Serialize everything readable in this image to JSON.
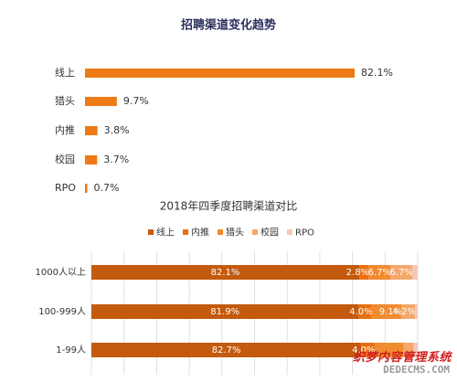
{
  "colors": {
    "bar_top": "#ee7a15",
    "stack": [
      "#c35a0d",
      "#e96f12",
      "#f08b2f",
      "#f4a86b",
      "#f7c7b8"
    ],
    "grid": "#d9d9d9",
    "text": "#333333",
    "title_top": "#2b2e5e"
  },
  "chart_data": [
    {
      "type": "bar",
      "orientation": "horizontal",
      "title": "招聘渠道变化趋势",
      "categories": [
        "线上",
        "猎头",
        "内推",
        "校园",
        "RPO"
      ],
      "values": [
        82.1,
        9.7,
        3.8,
        3.7,
        0.7
      ],
      "value_labels": [
        "82.1%",
        "9.7%",
        "3.8%",
        "3.7%",
        "0.7%"
      ],
      "xlim": [
        0,
        82.1
      ]
    },
    {
      "type": "bar",
      "orientation": "horizontal",
      "stacked": true,
      "title": "2018年四季度招聘渠道对比",
      "categories": [
        "1000人以上",
        "100-999人",
        "1-99人"
      ],
      "series": [
        {
          "name": "线上",
          "values": [
            82.1,
            81.9,
            82.7
          ],
          "labels": [
            "82.1%",
            "81.9%",
            "82.7%"
          ]
        },
        {
          "name": "内推",
          "values": [
            2.8,
            4.0,
            4.0
          ],
          "labels": [
            "2.8%",
            "4.0%",
            "4.0%"
          ]
        },
        {
          "name": "猎头",
          "values": [
            6.7,
            9.1,
            9.0
          ],
          "labels": [
            "6.7%",
            "9.1%",
            ""
          ]
        },
        {
          "name": "校园",
          "values": [
            6.7,
            4.2,
            3.0
          ],
          "labels": [
            "6.7%",
            "4.2%",
            ""
          ]
        },
        {
          "name": "RPO",
          "values": [
            1.7,
            0.8,
            1.3
          ],
          "labels": [
            "",
            "",
            ""
          ]
        }
      ],
      "legend": "top",
      "grid": true,
      "xlim": [
        0,
        100
      ]
    }
  ],
  "watermark": {
    "top": "织梦内容管理系统",
    "bottom": "DEDECMS.COM"
  }
}
